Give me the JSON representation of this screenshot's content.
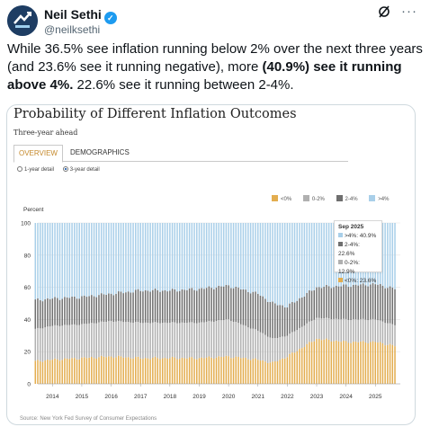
{
  "author": {
    "name": "Neil Sethi",
    "handle": "@neilksethi"
  },
  "icons": {
    "verified": "verified-badge-icon",
    "grok": "grok-icon",
    "more": "more-icon"
  },
  "tweet": {
    "text1": "While 36.5% see inflation running below 2% over the next three years (and 23.6% see it running negative), more ",
    "bold": "(40.9%) see it running above 4%.",
    "text2": " 22.6% see it running between 2-4%."
  },
  "card": {
    "title": "Probability of Different Inflation Outcomes",
    "subtitle": "Three-year ahead",
    "tabs": [
      {
        "label": "Overview",
        "active": true
      },
      {
        "label": "Demographics",
        "active": false
      }
    ],
    "radios": [
      {
        "label": "1-year detail",
        "selected": false
      },
      {
        "label": "3-year detail",
        "selected": true
      }
    ],
    "source": "Source: New York Fed Survey of Consumer Expectations"
  },
  "colors": {
    "lt0": "#e3ad4f",
    "b02": "#b0b0b0",
    "b24": "#6f6f6f",
    "gt4": "#a9cfe9"
  },
  "tooltip": {
    "title": "Sep 2025",
    "rows": [
      {
        "label": ">4%: 40.9%",
        "color": "#a9cfe9"
      },
      {
        "label": "2-4%: 22.6%",
        "color": "#6f6f6f"
      },
      {
        "label": "0-2%: 12.9%",
        "color": "#b0b0b0"
      },
      {
        "label": "<0%: 23.6%",
        "color": "#e3ad4f"
      }
    ]
  },
  "chart_data": {
    "type": "bar",
    "stacked": true,
    "ylabel": "Percent",
    "ylim": [
      0,
      100
    ],
    "yticks": [
      0,
      20,
      40,
      60,
      80,
      100
    ],
    "xticks": [
      "2014",
      "2015",
      "2016",
      "2017",
      "2018",
      "2019",
      "2020",
      "2021",
      "2022",
      "2023",
      "2024",
      "2025"
    ],
    "legend": [
      "<0%",
      "0-2%",
      "2-4%",
      ">4%"
    ],
    "x": [
      "2013-06",
      "2014-01",
      "2015-01",
      "2016-01",
      "2017-01",
      "2018-01",
      "2019-01",
      "2020-01",
      "2021-01",
      "2021-07",
      "2022-01",
      "2023-01",
      "2024-01",
      "2025-01",
      "2025-09"
    ],
    "series": [
      {
        "name": "<0%",
        "values": [
          14,
          15,
          16,
          17,
          16,
          16,
          16,
          17,
          15,
          13,
          17,
          28,
          26,
          26,
          23.6
        ]
      },
      {
        "name": "0-2%",
        "values": [
          20,
          21,
          21,
          22,
          22,
          22,
          22,
          23,
          18,
          15,
          13,
          13,
          14,
          14,
          12.9
        ]
      },
      {
        "name": "2-4%",
        "values": [
          18,
          17,
          17,
          17,
          20,
          20,
          21,
          21,
          23,
          22,
          18,
          19,
          21,
          22,
          22.6
        ]
      },
      {
        "name": ">4%",
        "values": [
          48,
          47,
          46,
          44,
          42,
          42,
          41,
          39,
          44,
          50,
          52,
          40,
          39,
          38,
          40.9
        ]
      }
    ]
  }
}
